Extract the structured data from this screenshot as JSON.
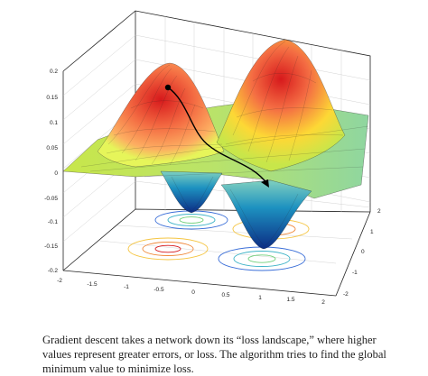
{
  "caption": "Gradient descent takes a network down its “loss landscape,” where higher values represent greater errors, or loss. The algorithm tries to find the global minimum value to minimize loss.",
  "z_ticks": [
    "0.2",
    "0.15",
    "0.1",
    "0.05",
    "0",
    "-0.05",
    "-0.1",
    "-0.15",
    "-0.2"
  ],
  "x_ticks": [
    "-2",
    "-1.5",
    "-1",
    "-0.5",
    "0",
    "0.5",
    "1",
    "1.5",
    "2"
  ],
  "y_ticks": [
    "2",
    "1",
    "0",
    "-1",
    "-2"
  ],
  "colors": {
    "peak": "#d7191c",
    "high": "#fdae61",
    "mid": "#d9ef4b",
    "low": "#41b6c4",
    "valley": "#0c2c84",
    "path": "#000000"
  }
}
